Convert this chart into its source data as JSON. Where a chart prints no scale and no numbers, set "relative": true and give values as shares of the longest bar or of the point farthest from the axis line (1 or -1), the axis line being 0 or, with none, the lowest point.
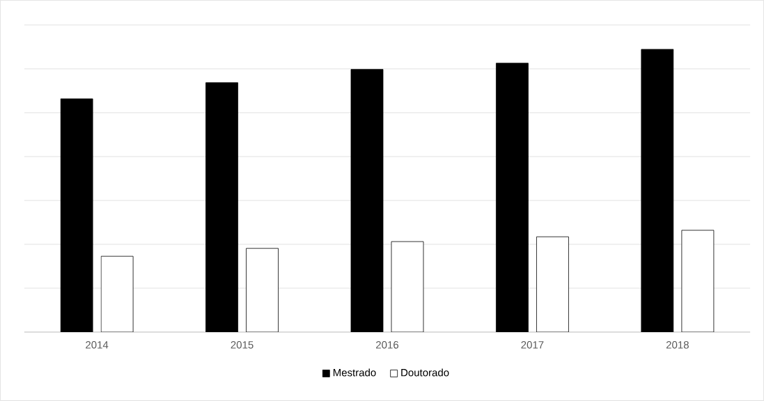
{
  "chart_data": {
    "type": "bar",
    "relative": true,
    "categories": [
      "2014",
      "2015",
      "2016",
      "2017",
      "2018"
    ],
    "series": [
      {
        "name": "Mestrado",
        "color": "#000000",
        "values": [
          0.825,
          0.882,
          0.929,
          0.951,
          1
        ]
      },
      {
        "name": "Doutorado",
        "color": "#ffffff",
        "values": [
          0.268,
          0.296,
          0.32,
          0.337,
          0.36
        ]
      }
    ],
    "grid": "y",
    "legend": "bottom"
  }
}
